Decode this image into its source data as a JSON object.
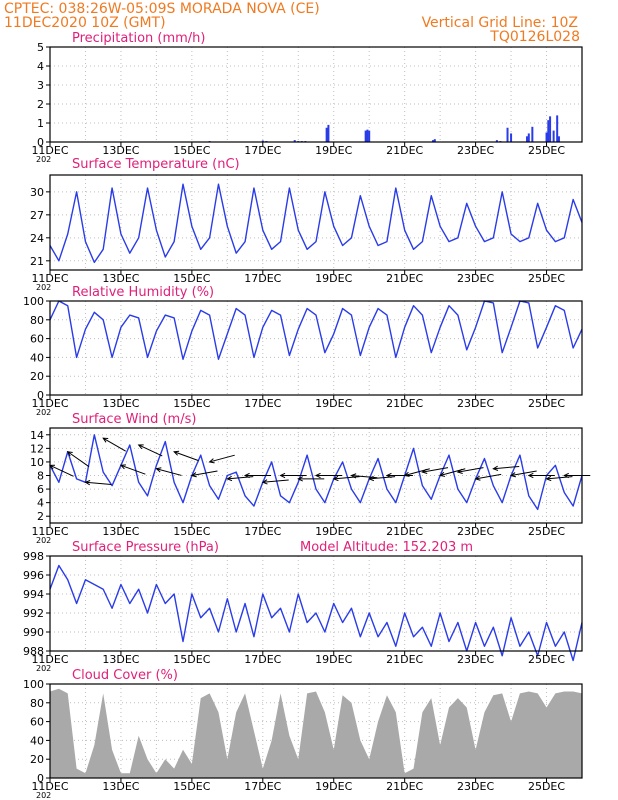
{
  "header": {
    "left_line1": "CPTEC:   038:26W-05:09S   MORADA NOVA (CE)",
    "left_line2": "11DEC2020 10Z (GMT)",
    "right_line1": "Vertical Grid Line: 10Z",
    "right_line2": "TQ0126L028"
  },
  "x_tick_labels": [
    "11DEC",
    "13DEC",
    "15DEC",
    "17DEC",
    "19DEC",
    "21DEC",
    "23DEC",
    "25DEC"
  ],
  "x_tick_cut_label": "202",
  "colors": {
    "header": "#f07a20",
    "panel_title": "#e0207a",
    "line": "#2a3ce8",
    "cloud": "#a9a9a9",
    "grid": "#bfbfbf"
  },
  "chart_data": [
    {
      "id": "precip",
      "type": "bar",
      "title": "Precipitation (mm/h)",
      "ylim": [
        0,
        5
      ],
      "yticks": [
        0,
        1,
        2,
        3,
        4,
        5
      ],
      "grid": true,
      "series": [
        {
          "x_day": [
            4.5,
            6.0,
            6.1,
            6.9,
            7.0,
            7.1,
            7.2,
            7.8,
            7.85,
            8.9,
            8.95,
            9.0,
            10.8,
            10.85,
            12.6,
            12.7,
            12.9,
            13.0,
            13.45,
            13.5,
            13.6,
            14.0,
            14.05,
            14.1,
            14.2,
            14.3,
            14.35
          ],
          "values": [
            0.05,
            0.08,
            0.05,
            0.1,
            0.05,
            0.05,
            0.05,
            0.75,
            0.9,
            0.6,
            0.65,
            0.6,
            0.1,
            0.15,
            0.1,
            0.05,
            0.75,
            0.45,
            0.3,
            0.45,
            0.8,
            0.5,
            1.15,
            1.35,
            0.6,
            1.4,
            0.3
          ]
        }
      ]
    },
    {
      "id": "temp",
      "type": "line",
      "title": "Surface Temperature (nC)",
      "ylim": [
        19.8,
        32.2
      ],
      "yticks": [
        21,
        24,
        27,
        30
      ],
      "grid": true,
      "series": [
        {
          "x_day": [
            0.0,
            0.25,
            0.5,
            0.75,
            1.0,
            1.25,
            1.5,
            1.75,
            2.0,
            2.25,
            2.5,
            2.75,
            3.0,
            3.25,
            3.5,
            3.75,
            4.0,
            4.25,
            4.5,
            4.75,
            5.0,
            5.25,
            5.5,
            5.75,
            6.0,
            6.25,
            6.5,
            6.75,
            7.0,
            7.25,
            7.5,
            7.75,
            8.0,
            8.25,
            8.5,
            8.75,
            9.0,
            9.25,
            9.5,
            9.75,
            10.0,
            10.25,
            10.5,
            10.75,
            11.0,
            11.25,
            11.5,
            11.75,
            12.0,
            12.25,
            12.5,
            12.75,
            13.0,
            13.25,
            13.5,
            13.75,
            14.0,
            14.25,
            14.5,
            14.75,
            15.0
          ],
          "values": [
            23.0,
            21.0,
            24.5,
            30.0,
            23.5,
            20.8,
            22.5,
            30.5,
            24.5,
            22.0,
            24.0,
            30.5,
            25.0,
            21.5,
            23.5,
            31.0,
            25.5,
            22.5,
            24.0,
            31.0,
            25.5,
            22.0,
            23.5,
            30.5,
            25.0,
            22.5,
            23.5,
            30.5,
            25.0,
            22.5,
            23.5,
            30.0,
            25.5,
            23.0,
            24.0,
            29.5,
            25.5,
            23.0,
            23.5,
            30.5,
            25.0,
            22.5,
            23.5,
            29.5,
            25.5,
            23.5,
            24.0,
            28.5,
            25.5,
            23.5,
            24.0,
            30.0,
            24.5,
            23.5,
            24.0,
            28.5,
            25.0,
            23.5,
            24.0,
            29.0,
            26.0
          ]
        }
      ]
    },
    {
      "id": "rh",
      "type": "line",
      "title": "Relative Humidity (%)",
      "ylim": [
        0,
        100
      ],
      "yticks": [
        0,
        20,
        40,
        60,
        80,
        100
      ],
      "grid": true,
      "series": [
        {
          "x_day": [
            0.0,
            0.25,
            0.5,
            0.75,
            1.0,
            1.25,
            1.5,
            1.75,
            2.0,
            2.25,
            2.5,
            2.75,
            3.0,
            3.25,
            3.5,
            3.75,
            4.0,
            4.25,
            4.5,
            4.75,
            5.0,
            5.25,
            5.5,
            5.75,
            6.0,
            6.25,
            6.5,
            6.75,
            7.0,
            7.25,
            7.5,
            7.75,
            8.0,
            8.25,
            8.5,
            8.75,
            9.0,
            9.25,
            9.5,
            9.75,
            10.0,
            10.25,
            10.5,
            10.75,
            11.0,
            11.25,
            11.5,
            11.75,
            12.0,
            12.25,
            12.5,
            12.75,
            13.0,
            13.25,
            13.5,
            13.75,
            14.0,
            14.25,
            14.5,
            14.75,
            15.0
          ],
          "values": [
            80,
            100,
            95,
            40,
            70,
            88,
            80,
            40,
            72,
            85,
            82,
            40,
            68,
            85,
            82,
            38,
            68,
            90,
            85,
            38,
            65,
            92,
            85,
            40,
            72,
            90,
            85,
            42,
            70,
            92,
            85,
            45,
            65,
            92,
            85,
            42,
            72,
            92,
            85,
            40,
            72,
            95,
            85,
            45,
            72,
            95,
            85,
            48,
            72,
            100,
            98,
            45,
            72,
            100,
            98,
            50,
            72,
            95,
            90,
            50,
            70
          ]
        }
      ]
    },
    {
      "id": "wind",
      "type": "line",
      "title": "Surface Wind (m/s)",
      "ylim": [
        1,
        15
      ],
      "yticks": [
        2,
        4,
        6,
        8,
        10,
        12,
        14
      ],
      "grid": true,
      "series": [
        {
          "x_day": [
            0.0,
            0.25,
            0.5,
            0.75,
            1.0,
            1.25,
            1.5,
            1.75,
            2.0,
            2.25,
            2.5,
            2.75,
            3.0,
            3.25,
            3.5,
            3.75,
            4.0,
            4.25,
            4.5,
            4.75,
            5.0,
            5.25,
            5.5,
            5.75,
            6.0,
            6.25,
            6.5,
            6.75,
            7.0,
            7.25,
            7.5,
            7.75,
            8.0,
            8.25,
            8.5,
            8.75,
            9.0,
            9.25,
            9.5,
            9.75,
            10.0,
            10.25,
            10.5,
            10.75,
            11.0,
            11.25,
            11.5,
            11.75,
            12.0,
            12.25,
            12.5,
            12.75,
            13.0,
            13.25,
            13.5,
            13.75,
            14.0,
            14.25,
            14.5,
            14.75,
            15.0
          ],
          "values": [
            9.5,
            7.0,
            11.5,
            7.5,
            7.0,
            14.0,
            8.5,
            6.5,
            9.5,
            12.5,
            7.0,
            5.0,
            9.5,
            13.0,
            7.0,
            4.0,
            8.0,
            11.0,
            6.5,
            4.5,
            8.0,
            8.5,
            5.0,
            3.5,
            7.0,
            10.0,
            5.0,
            4.0,
            7.0,
            11.0,
            6.0,
            4.0,
            7.5,
            10.0,
            6.0,
            4.0,
            7.5,
            10.5,
            6.0,
            4.0,
            8.0,
            12.0,
            6.5,
            4.5,
            8.0,
            11.0,
            6.0,
            4.0,
            7.5,
            10.5,
            6.5,
            4.0,
            8.0,
            11.0,
            5.0,
            3.0,
            8.0,
            9.5,
            5.5,
            3.5,
            8.0
          ]
        }
      ],
      "wind_arrows_from_bearing": [
        {
          "x_day": 0.0,
          "speed": 9.5,
          "bearing_deg": 65
        },
        {
          "x_day": 0.5,
          "speed": 11.5,
          "bearing_deg": 55
        },
        {
          "x_day": 1.0,
          "speed": 7.0,
          "bearing_deg": 85
        },
        {
          "x_day": 1.5,
          "speed": 13.5,
          "bearing_deg": 60
        },
        {
          "x_day": 2.0,
          "speed": 9.5,
          "bearing_deg": 70
        },
        {
          "x_day": 2.5,
          "speed": 12.5,
          "bearing_deg": 65
        },
        {
          "x_day": 3.0,
          "speed": 9.0,
          "bearing_deg": 75
        },
        {
          "x_day": 3.5,
          "speed": 11.5,
          "bearing_deg": 70
        },
        {
          "x_day": 4.0,
          "speed": 8.0,
          "bearing_deg": 100
        },
        {
          "x_day": 4.5,
          "speed": 10.0,
          "bearing_deg": 105
        },
        {
          "x_day": 5.0,
          "speed": 7.5,
          "bearing_deg": 95
        },
        {
          "x_day": 5.5,
          "speed": 8.0,
          "bearing_deg": 90
        },
        {
          "x_day": 6.0,
          "speed": 7.0,
          "bearing_deg": 95
        },
        {
          "x_day": 6.5,
          "speed": 8.0,
          "bearing_deg": 90
        },
        {
          "x_day": 7.0,
          "speed": 7.5,
          "bearing_deg": 90
        },
        {
          "x_day": 7.5,
          "speed": 8.0,
          "bearing_deg": 90
        },
        {
          "x_day": 8.0,
          "speed": 7.5,
          "bearing_deg": 95
        },
        {
          "x_day": 8.5,
          "speed": 8.0,
          "bearing_deg": 85
        },
        {
          "x_day": 9.0,
          "speed": 7.5,
          "bearing_deg": 95
        },
        {
          "x_day": 9.5,
          "speed": 8.0,
          "bearing_deg": 90
        },
        {
          "x_day": 10.0,
          "speed": 8.0,
          "bearing_deg": 105
        },
        {
          "x_day": 10.5,
          "speed": 8.5,
          "bearing_deg": 100
        },
        {
          "x_day": 11.0,
          "speed": 8.0,
          "bearing_deg": 105
        },
        {
          "x_day": 11.5,
          "speed": 8.5,
          "bearing_deg": 100
        },
        {
          "x_day": 12.0,
          "speed": 7.5,
          "bearing_deg": 100
        },
        {
          "x_day": 12.5,
          "speed": 9.0,
          "bearing_deg": 95
        },
        {
          "x_day": 13.0,
          "speed": 8.0,
          "bearing_deg": 100
        },
        {
          "x_day": 13.5,
          "speed": 8.0,
          "bearing_deg": 90
        },
        {
          "x_day": 14.0,
          "speed": 7.5,
          "bearing_deg": 95
        },
        {
          "x_day": 14.5,
          "speed": 8.0,
          "bearing_deg": 90
        }
      ]
    },
    {
      "id": "pres",
      "type": "line",
      "title": "Surface Pressure (hPa)",
      "annotation": "Model Altitude: 152.203 m",
      "ylim": [
        988,
        998
      ],
      "yticks": [
        988,
        990,
        992,
        994,
        996,
        998
      ],
      "grid": true,
      "series": [
        {
          "x_day": [
            0.0,
            0.25,
            0.5,
            0.75,
            1.0,
            1.25,
            1.5,
            1.75,
            2.0,
            2.25,
            2.5,
            2.75,
            3.0,
            3.25,
            3.5,
            3.75,
            4.0,
            4.25,
            4.5,
            4.75,
            5.0,
            5.25,
            5.5,
            5.75,
            6.0,
            6.25,
            6.5,
            6.75,
            7.0,
            7.25,
            7.5,
            7.75,
            8.0,
            8.25,
            8.5,
            8.75,
            9.0,
            9.25,
            9.5,
            9.75,
            10.0,
            10.25,
            10.5,
            10.75,
            11.0,
            11.25,
            11.5,
            11.75,
            12.0,
            12.25,
            12.5,
            12.75,
            13.0,
            13.25,
            13.5,
            13.75,
            14.0,
            14.25,
            14.5,
            14.75,
            15.0
          ],
          "values": [
            994.5,
            997.0,
            995.5,
            993.0,
            995.5,
            995.0,
            994.5,
            992.5,
            995.0,
            993.0,
            994.5,
            992.0,
            995.0,
            993.0,
            994.0,
            989.0,
            994.0,
            991.5,
            992.5,
            990.0,
            993.5,
            990.0,
            993.0,
            989.5,
            994.0,
            991.5,
            992.5,
            990.0,
            994.0,
            991.0,
            992.0,
            990.0,
            993.0,
            991.0,
            992.5,
            989.5,
            992.0,
            989.5,
            991.0,
            988.5,
            992.0,
            989.5,
            990.5,
            988.5,
            992.0,
            989.0,
            991.0,
            988.0,
            991.0,
            988.5,
            990.5,
            987.5,
            991.5,
            988.5,
            990.0,
            987.5,
            991.0,
            988.5,
            990.0,
            987.0,
            991.0
          ]
        }
      ]
    },
    {
      "id": "cloud",
      "type": "area",
      "title": "Cloud Cover (%)",
      "ylim": [
        0,
        100
      ],
      "yticks": [
        0,
        20,
        40,
        60,
        80,
        100
      ],
      "grid": true,
      "series": [
        {
          "x_day": [
            0.0,
            0.25,
            0.5,
            0.75,
            1.0,
            1.25,
            1.5,
            1.75,
            2.0,
            2.25,
            2.5,
            2.75,
            3.0,
            3.25,
            3.5,
            3.75,
            4.0,
            4.25,
            4.5,
            4.75,
            5.0,
            5.25,
            5.5,
            5.75,
            6.0,
            6.25,
            6.5,
            6.75,
            7.0,
            7.25,
            7.5,
            7.75,
            8.0,
            8.25,
            8.5,
            8.75,
            9.0,
            9.25,
            9.5,
            9.75,
            10.0,
            10.25,
            10.5,
            10.75,
            11.0,
            11.25,
            11.5,
            11.75,
            12.0,
            12.25,
            12.5,
            12.75,
            13.0,
            13.25,
            13.5,
            13.75,
            14.0,
            14.25,
            14.5,
            14.75,
            15.0
          ],
          "values": [
            92,
            95,
            90,
            10,
            5,
            35,
            90,
            30,
            5,
            5,
            45,
            20,
            5,
            20,
            10,
            30,
            15,
            85,
            90,
            70,
            20,
            70,
            90,
            50,
            10,
            40,
            90,
            45,
            20,
            90,
            92,
            70,
            30,
            88,
            80,
            40,
            20,
            60,
            88,
            70,
            5,
            10,
            70,
            85,
            35,
            75,
            85,
            75,
            30,
            70,
            88,
            90,
            60,
            90,
            92,
            90,
            75,
            90,
            92,
            92,
            90
          ]
        }
      ]
    }
  ]
}
